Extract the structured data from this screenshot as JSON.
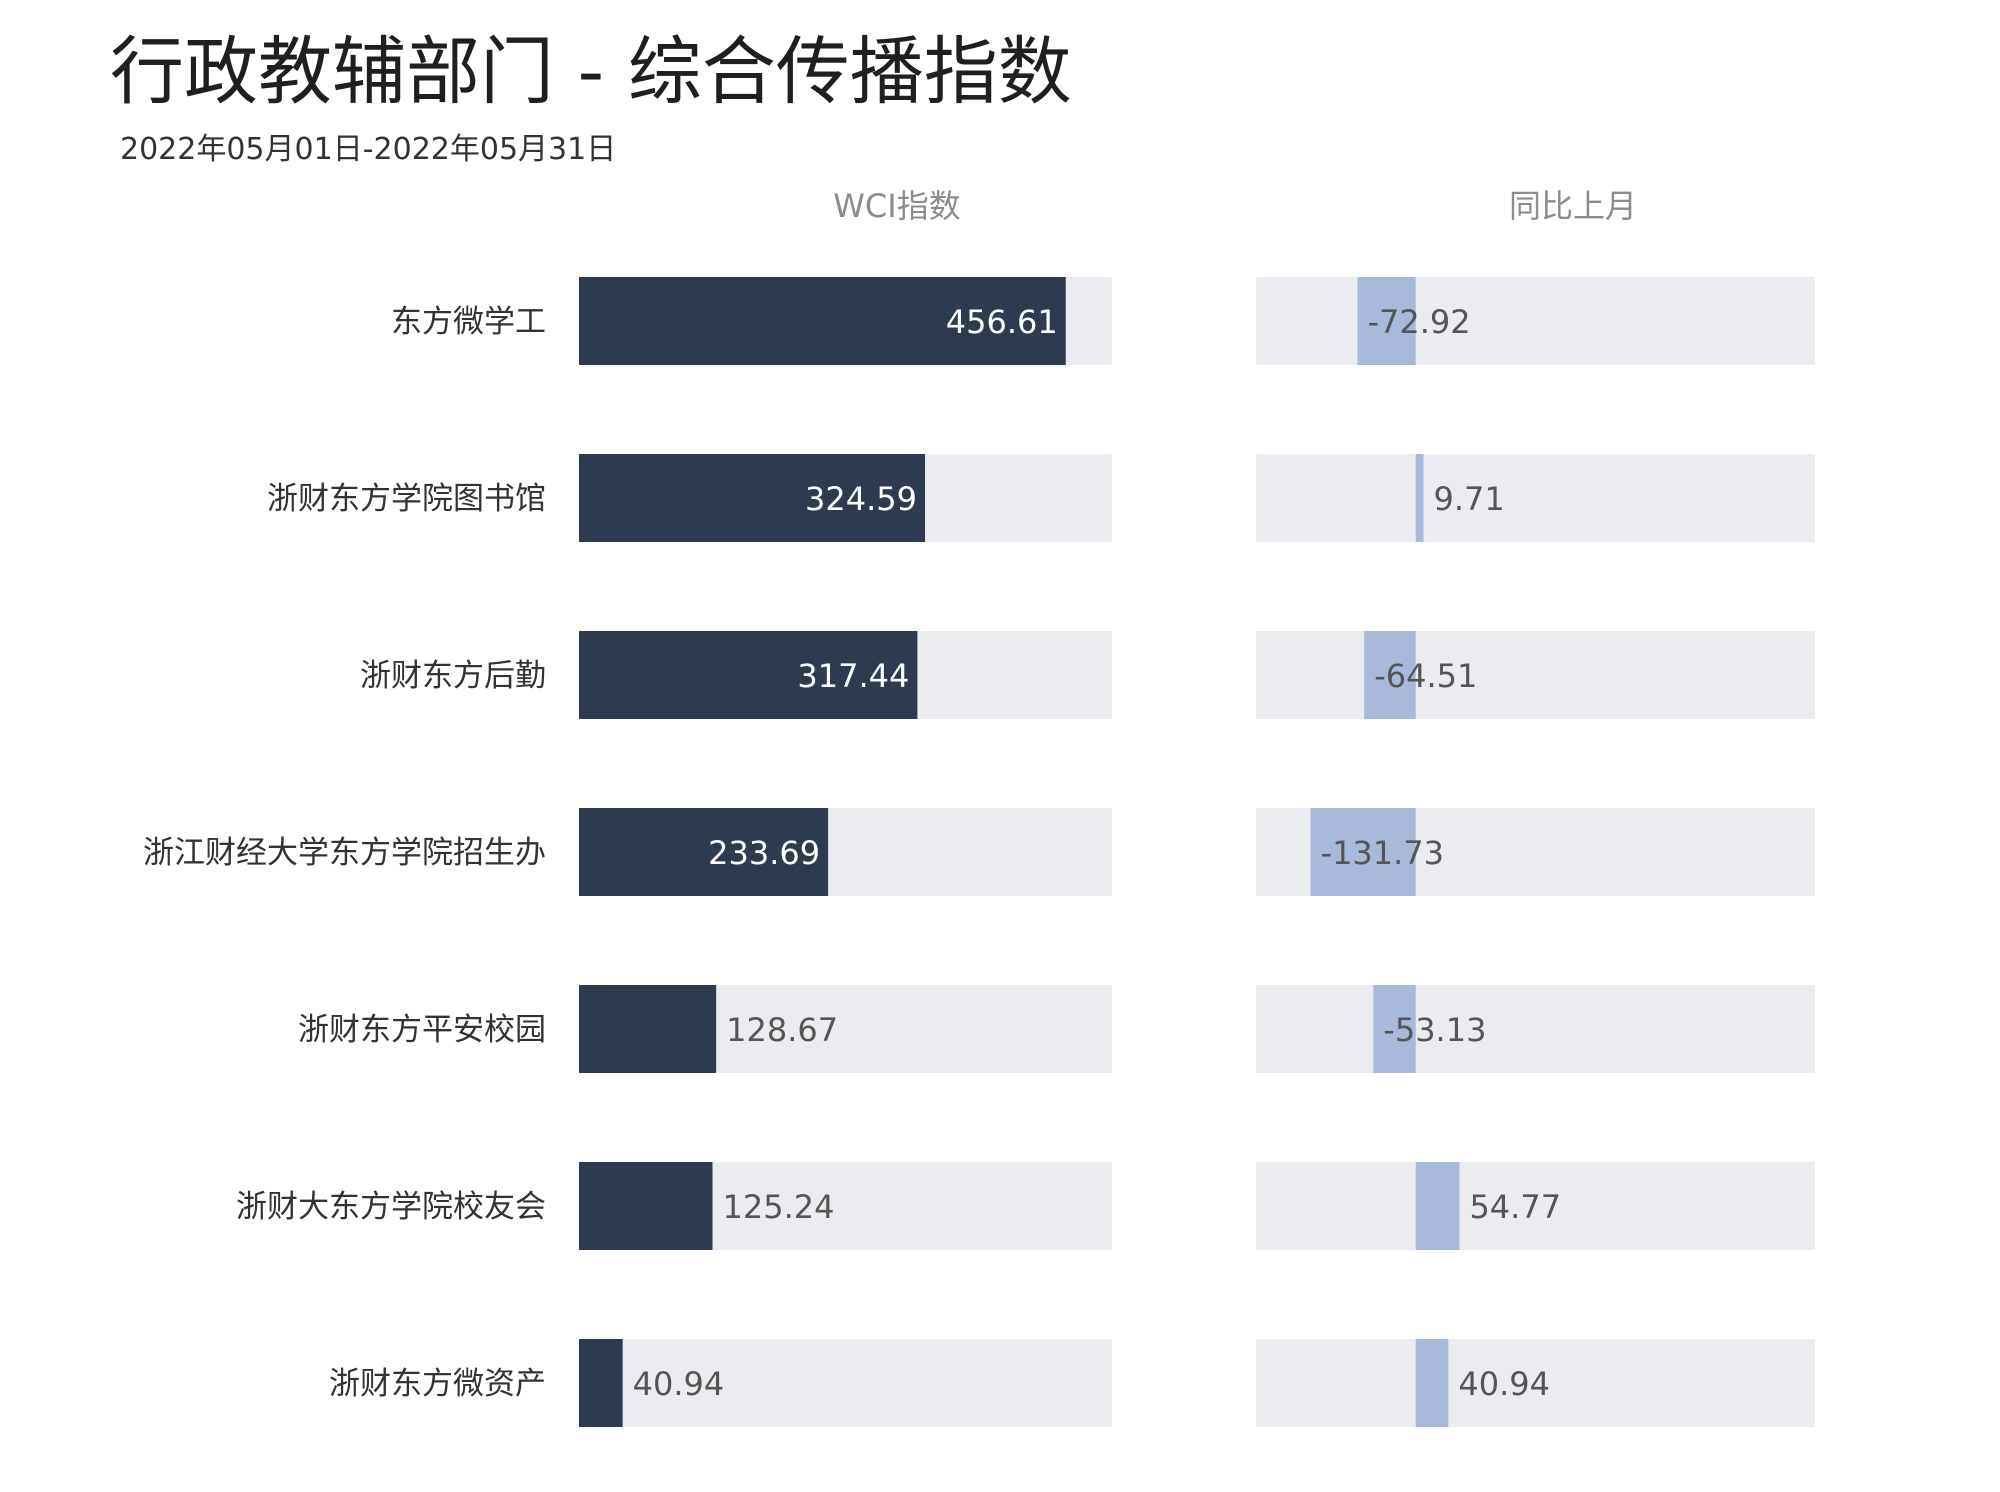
{
  "title": "行政教辅部门 - 综合传播指数",
  "subtitle": "2022年05月01日-2022年05月31日",
  "colors": {
    "wci_bar": "#2d3a50",
    "change_bar": "#a8b9d9",
    "track": "#ebecf0",
    "label_inside": "#ffffff",
    "label_outside": "#555555"
  },
  "chart_data": {
    "type": "bar",
    "orientation": "horizontal",
    "categories": [
      "东方微学工",
      "浙财东方学院图书馆",
      "浙财东方后勤",
      "浙江财经大学东方学院招生办",
      "浙财东方平安校园",
      "浙财大东方学院校友会",
      "浙财东方微资产"
    ],
    "series": [
      {
        "name": "WCI指数",
        "values": [
          456.61,
          324.59,
          317.44,
          233.69,
          128.67,
          125.24,
          40.94
        ]
      },
      {
        "name": "同比上月",
        "values": [
          -72.92,
          9.71,
          -64.51,
          -131.73,
          -53.13,
          54.77,
          40.94
        ]
      }
    ],
    "wci_range": [
      0,
      500
    ],
    "change_range": [
      -200,
      500
    ],
    "grid": false
  }
}
